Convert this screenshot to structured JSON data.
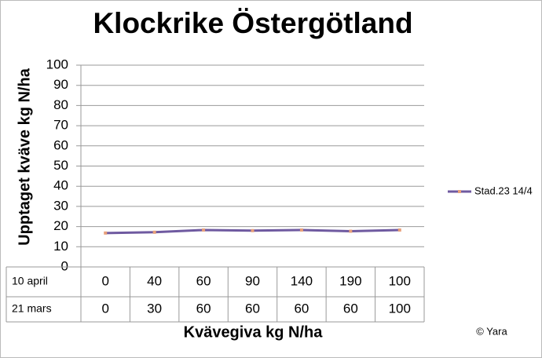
{
  "chart_data": {
    "type": "line",
    "title": "Klockrike Östergötland",
    "y_label": "Upptaget kväve kg N/ha",
    "x_label": "Kvävegiva kg N/ha",
    "note": "© Yara",
    "category_rows": [
      {
        "name": "10 april",
        "values": [
          0,
          40,
          60,
          90,
          140,
          190,
          100
        ]
      },
      {
        "name": "21 mars",
        "values": [
          0,
          30,
          60,
          60,
          60,
          60,
          100
        ]
      }
    ],
    "series": [
      {
        "name": "Stad.23 14/4",
        "color": "#6f5aa0",
        "marker_color": "#e8a07a",
        "values": [
          16.8,
          17.2,
          18.3,
          18.0,
          18.3,
          17.7,
          18.3
        ]
      }
    ],
    "ylim": [
      0,
      100
    ],
    "yticks": [
      0,
      10,
      20,
      30,
      40,
      50,
      60,
      70,
      80,
      90,
      100
    ],
    "grid": true,
    "legend": "right"
  }
}
